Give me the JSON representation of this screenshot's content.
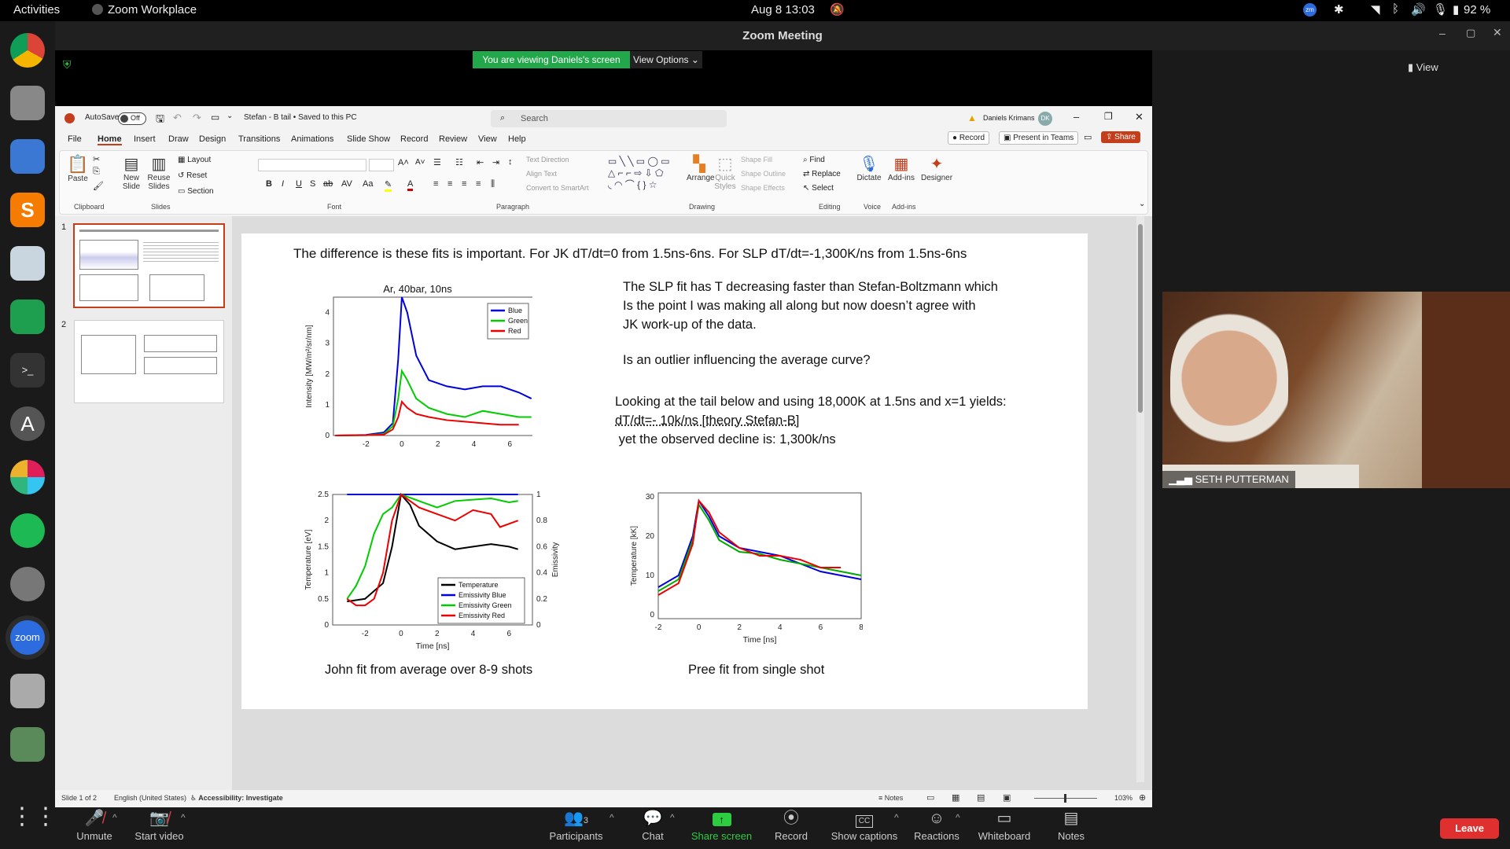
{
  "topbar": {
    "activities": "Activities",
    "app": "Zoom Workplace",
    "datetime": "Aug 8  13:03",
    "battery": "92 %"
  },
  "zoom": {
    "title": "Zoom Meeting",
    "banner": "You are viewing Daniels's screen",
    "view_options": "View Options",
    "view": "View",
    "participant": "SETH PUTTERMAN",
    "participants_count": "3"
  },
  "ppt": {
    "autosave": "AutoSave",
    "off": "Off",
    "doc_title": "Stefan - B tail  •  Saved to this PC",
    "search": "Search",
    "user": "Daniels Krimans",
    "initials": "DK",
    "record": "Record",
    "present": "Present in Teams",
    "share": "Share",
    "tabs": [
      "File",
      "Home",
      "Insert",
      "Draw",
      "Design",
      "Transitions",
      "Animations",
      "Slide Show",
      "Record",
      "Review",
      "View",
      "Help"
    ],
    "groups": [
      "Clipboard",
      "Slides",
      "Font",
      "Paragraph",
      "Drawing",
      "Editing",
      "Voice",
      "Add-ins"
    ],
    "buttons": {
      "paste": "Paste",
      "new_slide": "New Slide",
      "reuse": "Reuse Slides",
      "layout": "Layout",
      "reset": "Reset",
      "section": "Section",
      "text_dir": "Text Direction",
      "align_text": "Align Text",
      "smartart": "Convert to SmartArt",
      "arrange": "Arrange",
      "quick_styles": "Quick Styles",
      "shape_fill": "Shape Fill",
      "shape_outline": "Shape Outline",
      "shape_effects": "Shape Effects",
      "find": "Find",
      "replace": "Replace",
      "select": "Select",
      "dictate": "Dictate",
      "addins": "Add-ins",
      "designer": "Designer"
    },
    "status": {
      "slide": "Slide 1 of 2",
      "lang": "English (United States)",
      "access": "Accessibility: Investigate",
      "notes": "Notes",
      "zoom": "103%"
    }
  },
  "slide": {
    "heading": "The difference is these fits is important. For JK dT/dt=0 from 1.5ns-6ns. For SLP dT/dt=-1,300K/ns from 1.5ns-6ns",
    "p1": "The SLP fit has T decreasing faster than Stefan-Boltzmann which",
    "p2": "Is the point I was making all along but now doesn’t agree with",
    "p3": "JK work-up of the data.",
    "p4": "Is an outlier influencing the average curve?",
    "p5": "Looking at the tail below and using 18,000K at 1.5ns and x=1 yields:",
    "p6": "dT/dt=- 10k/ns [theory Stefan-B]",
    "p7": " yet the observed decline is: 1,300k/ns",
    "cap1": "John fit from average over 8-9 shots",
    "cap2": "Pree fit from single shot"
  },
  "chart_data": [
    {
      "type": "line",
      "title": "Ar, 40bar, 10ns",
      "ylabel": "Intensity [MW/m²/sr/nm]",
      "xlim": [
        -3.8,
        7.3
      ],
      "ylim": [
        0,
        4.5
      ],
      "xticks": [
        "-2",
        "0",
        "2",
        "4",
        "6"
      ],
      "yticks": [
        "0",
        "1",
        "2",
        "3",
        "4"
      ],
      "legend": "top-right",
      "series": [
        {
          "name": "Blue",
          "color": "#0000dd",
          "x": [
            -3.7,
            -2,
            -1,
            -0.5,
            -0.2,
            0,
            0.3,
            0.8,
            1.5,
            2.5,
            3.5,
            4.5,
            5.5,
            6.5,
            7.2
          ],
          "y": [
            0,
            0.02,
            0.1,
            0.4,
            2.5,
            4.5,
            4,
            2.6,
            1.8,
            1.6,
            1.5,
            1.6,
            1.6,
            1.4,
            1.2
          ]
        },
        {
          "name": "Green",
          "color": "#00cc00",
          "x": [
            -3.7,
            -2,
            -1,
            -0.5,
            -0.2,
            0,
            0.3,
            0.8,
            1.5,
            2.5,
            3.5,
            4.5,
            5.5,
            6.5,
            7.2
          ],
          "y": [
            0,
            0.01,
            0.05,
            0.3,
            1.2,
            2.1,
            1.8,
            1.2,
            0.9,
            0.7,
            0.6,
            0.8,
            0.7,
            0.6,
            0.6
          ]
        },
        {
          "name": "Red",
          "color": "#ee0000",
          "x": [
            -3.7,
            -2,
            -1,
            -0.5,
            -0.2,
            0,
            0.3,
            0.8,
            1.5,
            2.5,
            3.5,
            4.5,
            5.5,
            6.5
          ],
          "y": [
            0,
            0.01,
            0.03,
            0.2,
            0.6,
            1.1,
            0.9,
            0.7,
            0.6,
            0.5,
            0.45,
            0.4,
            0.35,
            0.35
          ]
        }
      ]
    },
    {
      "type": "line",
      "xlabel": "Time [ns]",
      "ylabel": "Temperature [eV]",
      "y2label": "Emissivity",
      "xlim": [
        -3.8,
        7.3
      ],
      "ylim": [
        0,
        2.5
      ],
      "y2lim": [
        0,
        1
      ],
      "xticks": [
        "-2",
        "0",
        "2",
        "4",
        "6"
      ],
      "yticks": [
        "0",
        "0.5",
        "1",
        "1.5",
        "2",
        "2.5"
      ],
      "y2ticks": [
        "0",
        "0.2",
        "0.4",
        "0.6",
        "0.8",
        "1"
      ],
      "legend": "bottom-right",
      "series": [
        {
          "name": "Temperature",
          "color": "#000000",
          "x": [
            -3,
            -2,
            -1,
            -0.5,
            0,
            0.5,
            1,
            2,
            3,
            4,
            5,
            6,
            6.5
          ],
          "y": [
            0.45,
            0.5,
            0.8,
            1.5,
            2.5,
            2.3,
            1.9,
            1.6,
            1.45,
            1.5,
            1.55,
            1.5,
            1.45
          ]
        },
        {
          "name": "Emissivity Blue",
          "color": "#0000dd",
          "axis": "y2",
          "x": [
            -3,
            -1,
            0,
            1,
            2,
            3,
            4,
            5,
            6,
            6.5
          ],
          "y": [
            1,
            1,
            1,
            1,
            1,
            1,
            1,
            1,
            1,
            1
          ]
        },
        {
          "name": "Emissivity Green",
          "color": "#00cc00",
          "axis": "y2",
          "x": [
            -3,
            -2.5,
            -2,
            -1.5,
            -1,
            -0.5,
            0,
            1,
            2,
            3,
            4,
            5,
            6,
            6.5
          ],
          "y": [
            0.2,
            0.3,
            0.45,
            0.7,
            0.85,
            0.9,
            1,
            0.95,
            0.9,
            0.95,
            0.96,
            0.97,
            0.94,
            0.95
          ]
        },
        {
          "name": "Emissivity Red",
          "color": "#ee0000",
          "axis": "y2",
          "x": [
            -3,
            -2.5,
            -2,
            -1.5,
            -1,
            -0.5,
            0,
            1,
            2,
            3,
            4,
            5,
            5.5,
            6.5
          ],
          "y": [
            0.2,
            0.15,
            0.15,
            0.2,
            0.4,
            0.8,
            1,
            0.9,
            0.85,
            0.8,
            0.88,
            0.85,
            0.75,
            0.8
          ]
        }
      ]
    },
    {
      "type": "line",
      "xlabel": "Time [ns]",
      "ylabel": "Temperature [kK]",
      "xlim": [
        -2,
        8
      ],
      "ylim": [
        -1,
        31
      ],
      "xticks": [
        "-2",
        "0",
        "2",
        "4",
        "6",
        "8"
      ],
      "yticks": [
        "0",
        "10",
        "20",
        "30"
      ],
      "series": [
        {
          "color": "#0000dd",
          "x": [
            -2,
            -1,
            -0.3,
            0,
            0.5,
            1,
            2,
            3,
            4,
            5,
            6,
            7,
            8
          ],
          "y": [
            7,
            10,
            20,
            29,
            25,
            20,
            17,
            16,
            15,
            13,
            11,
            10,
            9
          ]
        },
        {
          "color": "#00aa00",
          "x": [
            -2,
            -1,
            -0.3,
            0,
            0.5,
            1,
            2,
            3,
            4,
            5,
            6,
            7,
            8
          ],
          "y": [
            6,
            9,
            19,
            28,
            24,
            19,
            16,
            15.5,
            14,
            13,
            12,
            11,
            10
          ]
        },
        {
          "color": "#ee0000",
          "x": [
            -2,
            -1,
            -0.3,
            0,
            0.5,
            1,
            2,
            3,
            4,
            5,
            6,
            7
          ],
          "y": [
            5,
            8,
            18,
            29,
            26,
            21,
            17,
            15,
            15,
            14,
            12,
            12
          ]
        }
      ]
    }
  ],
  "controls": [
    "Unmute",
    "Start video",
    "Participants",
    "Chat",
    "Share screen",
    "Record",
    "Show captions",
    "Reactions",
    "Whiteboard",
    "Notes",
    "Leave"
  ]
}
